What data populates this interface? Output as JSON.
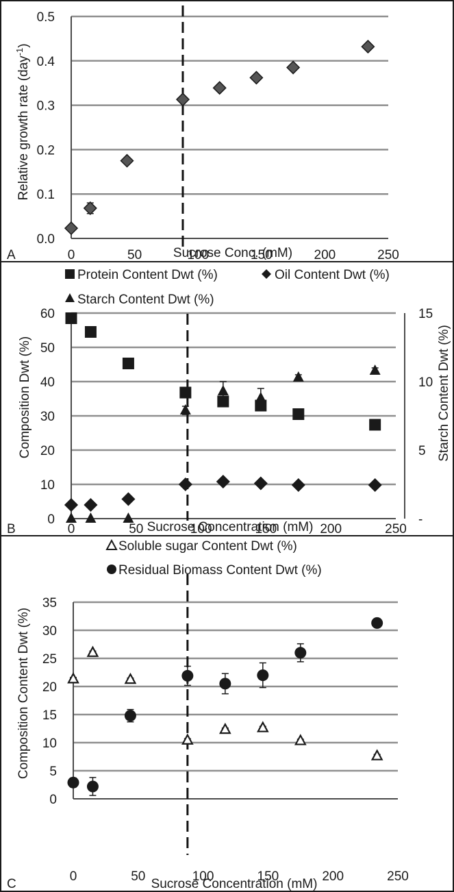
{
  "chart_data": [
    {
      "panel": "A",
      "type": "scatter",
      "xlabel": "Sucrose Conc. (mM)",
      "ylabel": "Relative growth rate (day",
      "ylabel_sup": "-1",
      "ylabel_close": ")",
      "xlim": [
        0,
        250
      ],
      "ylim": [
        0,
        0.5
      ],
      "xticks": [
        "0",
        "50",
        "100",
        "150",
        "200",
        "250"
      ],
      "yticks": [
        "0.0",
        "0.1",
        "0.2",
        "0.3",
        "0.4",
        "0.5"
      ],
      "vline_x": 88,
      "grid": true,
      "series": [
        {
          "marker": "diamond",
          "x": [
            0,
            15,
            44,
            88,
            117,
            146,
            175,
            234
          ],
          "y": [
            0.023,
            0.068,
            0.175,
            0.313,
            0.339,
            0.362,
            0.385,
            0.432
          ],
          "err": [
            0.004,
            0.012,
            0.004,
            0.006,
            0.004,
            0.004,
            0.004,
            0.004
          ]
        }
      ]
    },
    {
      "panel": "B",
      "type": "scatter",
      "xlabel": "Sucrose Concentration (mM)",
      "ylabel": "Composition Dwt (%)",
      "y2label": "Starch Content Dwt (%)",
      "xlim": [
        0,
        250
      ],
      "ylim": [
        0,
        60
      ],
      "y2lim": [
        0,
        15
      ],
      "xticks": [
        "0",
        "50",
        "100",
        "150",
        "200",
        "250"
      ],
      "yticks": [
        "0",
        "10",
        "20",
        "30",
        "40",
        "50",
        "60"
      ],
      "y2ticks": [
        "-",
        "5",
        "10",
        "15"
      ],
      "vline_x": 88,
      "grid": true,
      "legend": [
        "Protein Content Dwt (%)",
        "Oil Content Dwt (%)",
        "Starch Content Dwt (%)"
      ],
      "series": [
        {
          "name": "Protein Content Dwt (%)",
          "marker": "square",
          "axis": "left",
          "x": [
            0,
            15,
            44,
            88,
            117,
            146,
            175,
            234
          ],
          "y": [
            58.5,
            54.5,
            45.3,
            36.8,
            34.2,
            33.0,
            30.5,
            27.4
          ],
          "err": [
            0.5,
            0.5,
            0.5,
            0.5,
            0.8,
            0.5,
            0.5,
            0.5
          ]
        },
        {
          "name": "Oil Content Dwt (%)",
          "marker": "diamond",
          "axis": "left",
          "x": [
            0,
            15,
            44,
            88,
            117,
            146,
            175,
            234
          ],
          "y": [
            4.0,
            4.0,
            5.7,
            10.0,
            10.8,
            10.3,
            9.8,
            9.8
          ],
          "err": [
            0.3,
            0.3,
            0.3,
            0.3,
            0.3,
            0.3,
            0.3,
            0.3
          ]
        },
        {
          "name": "Starch Content Dwt (%)",
          "marker": "triangle",
          "axis": "right",
          "x": [
            0,
            15,
            44,
            88,
            117,
            146,
            175,
            234
          ],
          "y": [
            0.0,
            0.0,
            0.0,
            7.9,
            9.3,
            8.8,
            10.3,
            10.8
          ],
          "err": [
            0.0,
            0.0,
            0.0,
            0.3,
            0.7,
            0.7,
            0.2,
            0.2
          ]
        }
      ]
    },
    {
      "panel": "C",
      "type": "scatter",
      "xlabel": "Sucrose Concentration (mM)",
      "ylabel": "Composition Content Dwt (%)",
      "xlim": [
        0,
        250
      ],
      "ylim": [
        0,
        35
      ],
      "xticks": [
        "0",
        "50",
        "100",
        "150",
        "200",
        "250"
      ],
      "yticks": [
        "0",
        "5",
        "10",
        "15",
        "20",
        "25",
        "30",
        "35"
      ],
      "vline_x": 88,
      "grid": true,
      "legend": [
        "Soluble sugar Content Dwt (%)",
        "Residual Biomass Content Dwt (%)"
      ],
      "series": [
        {
          "name": "Soluble sugar Content Dwt (%)",
          "marker": "open-triangle",
          "x": [
            0,
            15,
            44,
            88,
            117,
            146,
            175,
            234
          ],
          "y": [
            21.3,
            26.0,
            21.2,
            10.4,
            12.3,
            12.6,
            10.3,
            7.6
          ],
          "err": [
            0.3,
            0.3,
            0.3,
            0.3,
            0.3,
            0.3,
            0.3,
            0.3
          ]
        },
        {
          "name": "Residual Biomass Content Dwt (%)",
          "marker": "circle",
          "x": [
            0,
            15,
            44,
            88,
            117,
            146,
            175,
            234
          ],
          "y": [
            2.9,
            2.2,
            14.8,
            21.9,
            20.5,
            22.0,
            26.0,
            31.3
          ],
          "err": [
            0.8,
            1.6,
            1.1,
            1.7,
            1.8,
            2.2,
            1.6,
            0.0
          ]
        }
      ]
    }
  ],
  "colors": {
    "marker": "#1a1a1a",
    "diamond_fill_A": "#555555",
    "grid": "#8f8f8f",
    "axis": "#4a4a4a",
    "frame": "#1a1a1a",
    "background": "#ffffff"
  },
  "font_note": ""
}
